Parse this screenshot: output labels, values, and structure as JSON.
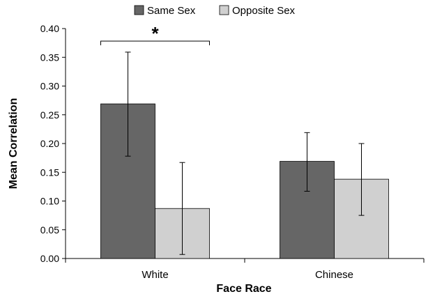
{
  "chart_data": {
    "type": "bar",
    "categories": [
      "White",
      "Chinese"
    ],
    "series": [
      {
        "name": "Same Sex",
        "color": "#666666",
        "values": [
          0.269,
          0.169
        ],
        "error_low": [
          0.178,
          0.117
        ],
        "error_high": [
          0.359,
          0.219
        ]
      },
      {
        "name": "Opposite Sex",
        "color": "#d0d0d0",
        "values": [
          0.087,
          0.138
        ],
        "error_low": [
          0.007,
          0.075
        ],
        "error_high": [
          0.167,
          0.2
        ]
      }
    ],
    "xlabel": "Face Race",
    "ylabel": "Mean Correlation",
    "ylim": [
      0,
      0.4
    ],
    "yticks": [
      "0.00",
      "0.05",
      "0.10",
      "0.15",
      "0.20",
      "0.25",
      "0.30",
      "0.35",
      "0.40"
    ],
    "legend_position": "top-center",
    "grid": false,
    "annotations": [
      {
        "text": "*",
        "category": "White",
        "type": "significance-bracket"
      }
    ]
  }
}
